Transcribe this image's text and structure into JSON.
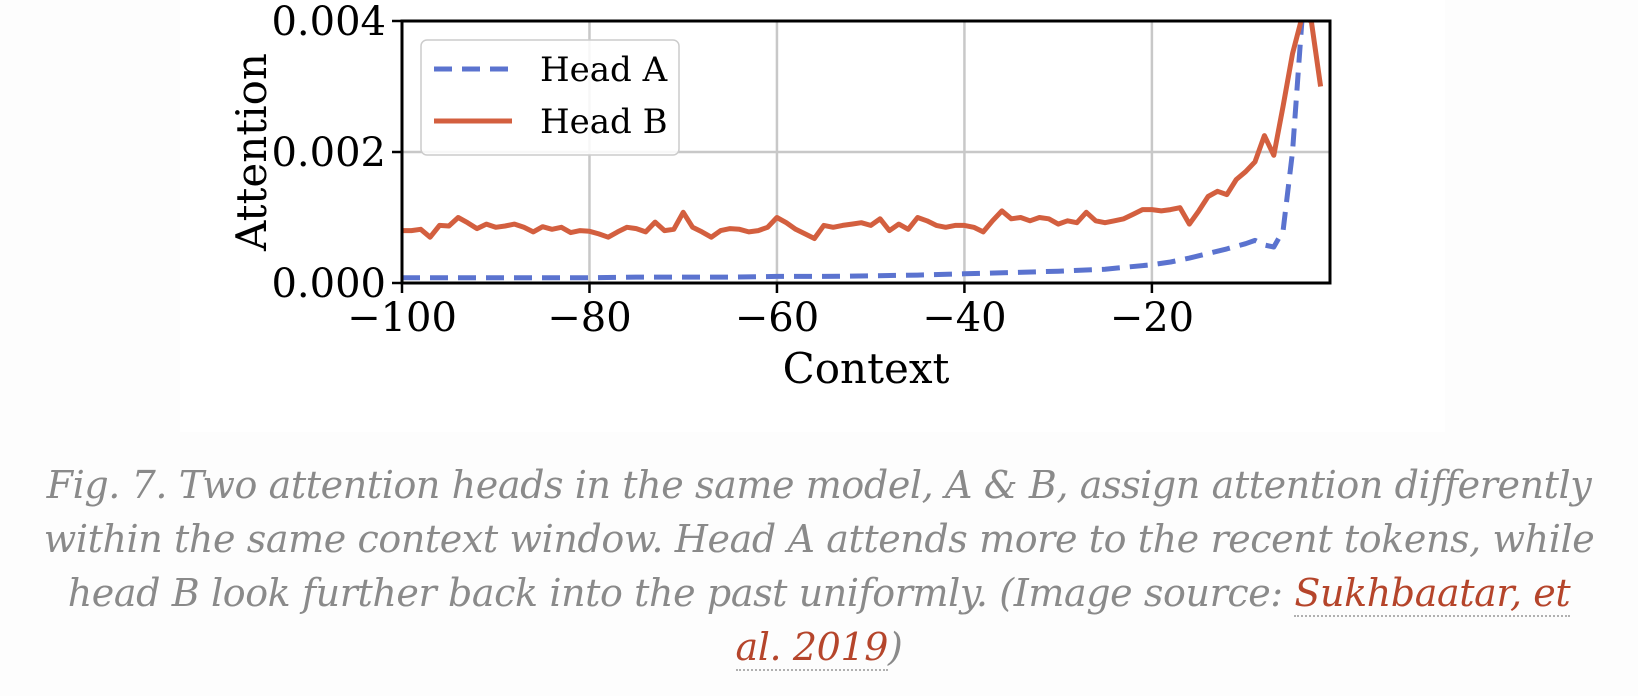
{
  "chart_data": {
    "type": "line",
    "xlabel": "Context",
    "ylabel": "Attention",
    "xlim": [
      -100,
      -1
    ],
    "ylim": [
      0,
      0.004
    ],
    "xticks": [
      -100,
      -80,
      -60,
      -40,
      -20
    ],
    "xtick_labels": [
      "−100",
      "−80",
      "−60",
      "−40",
      "−20"
    ],
    "yticks": [
      0,
      0.002,
      0.004
    ],
    "ytick_labels": [
      "0.000",
      "0.002",
      "0.004"
    ],
    "grid": true,
    "legend_position": "top-left",
    "series": [
      {
        "name": "Head A",
        "style": "dashed",
        "color": "#5b73cf",
        "x": [
          -100,
          -95,
          -90,
          -85,
          -80,
          -75,
          -70,
          -65,
          -60,
          -55,
          -50,
          -45,
          -40,
          -35,
          -30,
          -25,
          -20,
          -18,
          -16,
          -14,
          -12,
          -10,
          -9,
          -8,
          -7,
          -6,
          -5,
          -4
        ],
        "y": [
          8e-05,
          8e-05,
          8e-05,
          8e-05,
          8e-05,
          9e-05,
          9e-05,
          9e-05,
          0.0001,
          0.0001,
          0.00011,
          0.00012,
          0.00014,
          0.00016,
          0.00018,
          0.00021,
          0.00028,
          0.00032,
          0.00038,
          0.00045,
          0.00052,
          0.0006,
          0.00065,
          0.00058,
          0.00055,
          0.0008,
          0.002,
          0.004
        ]
      },
      {
        "name": "Head B",
        "style": "solid",
        "color": "#d35f3f",
        "x": [
          -100,
          -99,
          -98,
          -97,
          -96,
          -95,
          -94,
          -93,
          -92,
          -91,
          -90,
          -89,
          -88,
          -87,
          -86,
          -85,
          -84,
          -83,
          -82,
          -81,
          -80,
          -79,
          -78,
          -77,
          -76,
          -75,
          -74,
          -73,
          -72,
          -71,
          -70,
          -69,
          -68,
          -67,
          -66,
          -65,
          -64,
          -63,
          -62,
          -61,
          -60,
          -59,
          -58,
          -57,
          -56,
          -55,
          -54,
          -53,
          -52,
          -51,
          -50,
          -49,
          -48,
          -47,
          -46,
          -45,
          -44,
          -43,
          -42,
          -41,
          -40,
          -39,
          -38,
          -37,
          -36,
          -35,
          -34,
          -33,
          -32,
          -31,
          -30,
          -29,
          -28,
          -27,
          -26,
          -25,
          -24,
          -23,
          -22,
          -21,
          -20,
          -19,
          -18,
          -17,
          -16,
          -15,
          -14,
          -13,
          -12,
          -11,
          -10,
          -9,
          -8,
          -7,
          -6,
          -5,
          -4,
          -3,
          -2
        ],
        "y": [
          0.0008,
          0.0008,
          0.00082,
          0.0007,
          0.00088,
          0.00087,
          0.001,
          0.00092,
          0.00083,
          0.0009,
          0.00085,
          0.00087,
          0.0009,
          0.00085,
          0.00078,
          0.00086,
          0.00082,
          0.00085,
          0.00077,
          0.0008,
          0.00079,
          0.00075,
          0.0007,
          0.00078,
          0.00085,
          0.00083,
          0.00078,
          0.00093,
          0.0008,
          0.00082,
          0.00108,
          0.00085,
          0.00078,
          0.0007,
          0.0008,
          0.00083,
          0.00082,
          0.00078,
          0.0008,
          0.00085,
          0.001,
          0.00092,
          0.00082,
          0.00075,
          0.00068,
          0.00088,
          0.00085,
          0.00088,
          0.0009,
          0.00092,
          0.00088,
          0.00098,
          0.0008,
          0.0009,
          0.00082,
          0.001,
          0.00095,
          0.00088,
          0.00085,
          0.00088,
          0.00088,
          0.00085,
          0.00078,
          0.00095,
          0.0011,
          0.00098,
          0.001,
          0.00095,
          0.001,
          0.00098,
          0.0009,
          0.00095,
          0.00092,
          0.00108,
          0.00095,
          0.00092,
          0.00095,
          0.00098,
          0.00105,
          0.00112,
          0.00112,
          0.0011,
          0.00112,
          0.00115,
          0.0009,
          0.0011,
          0.00132,
          0.0014,
          0.00135,
          0.00158,
          0.0017,
          0.00185,
          0.00225,
          0.00195,
          0.0027,
          0.0035,
          0.00405,
          0.004,
          0.003
        ]
      }
    ]
  },
  "caption": {
    "text": "Fig. 7. Two attention heads in the same model, A & B, assign attention differently within the same context window. Head A attends more to the recent tokens, while head B look further back into the past uniformly. (Image source: ",
    "link_text": "Sukhbaatar, et al. 2019",
    "closing": ")"
  }
}
